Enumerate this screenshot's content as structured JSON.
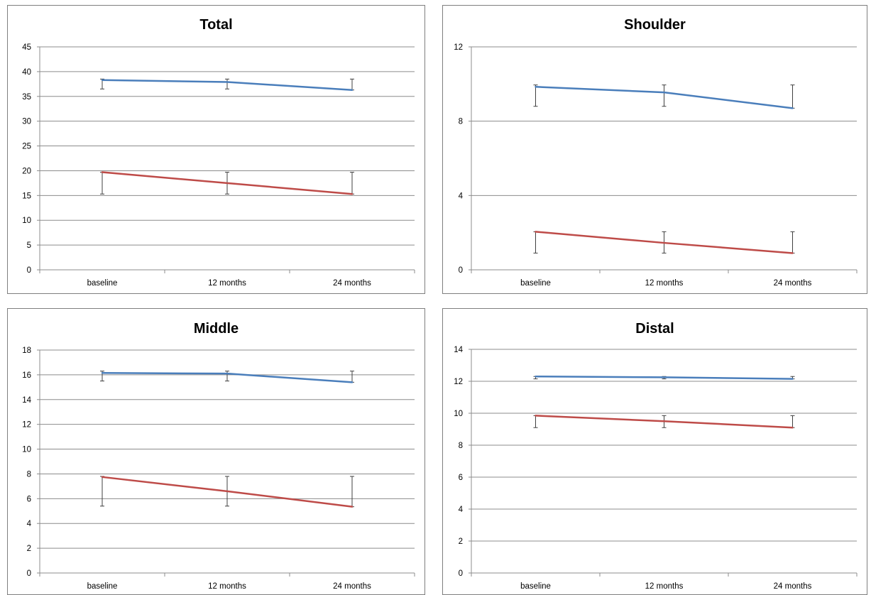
{
  "chart_data": [
    {
      "type": "line",
      "title": "Total",
      "categories": [
        "baseline",
        "12 months",
        "24 months"
      ],
      "ylim": [
        0,
        45
      ],
      "yticks": [
        0,
        5,
        10,
        15,
        20,
        25,
        30,
        35,
        40,
        45
      ],
      "grid": true,
      "series": [
        {
          "color": "#4a7ebb",
          "values": [
            38.3,
            37.9,
            36.3
          ],
          "err_low": [
            36.5,
            36.5,
            36.3
          ],
          "err_high": [
            38.5,
            38.5,
            38.5
          ]
        },
        {
          "color": "#be4b48",
          "values": [
            19.7,
            17.5,
            15.3
          ],
          "err_low": [
            15.3,
            15.3,
            15.3
          ],
          "err_high": [
            19.7,
            19.7,
            19.7
          ]
        }
      ]
    },
    {
      "type": "line",
      "title": "Shoulder",
      "categories": [
        "baseline",
        "12 months",
        "24 months"
      ],
      "ylim": [
        0,
        12
      ],
      "yticks": [
        0,
        4,
        8,
        12
      ],
      "grid": true,
      "series": [
        {
          "color": "#4a7ebb",
          "values": [
            9.85,
            9.55,
            8.7
          ],
          "err_low": [
            8.8,
            8.8,
            8.7
          ],
          "err_high": [
            9.95,
            9.95,
            9.95
          ]
        },
        {
          "color": "#be4b48",
          "values": [
            2.05,
            1.45,
            0.9
          ],
          "err_low": [
            0.9,
            0.9,
            0.9
          ],
          "err_high": [
            2.05,
            2.05,
            2.05
          ]
        }
      ]
    },
    {
      "type": "line",
      "title": "Middle",
      "categories": [
        "baseline",
        "12 months",
        "24 months"
      ],
      "ylim": [
        0,
        18
      ],
      "yticks": [
        0,
        2,
        4,
        6,
        8,
        10,
        12,
        14,
        16,
        18
      ],
      "grid": true,
      "series": [
        {
          "color": "#4a7ebb",
          "values": [
            16.15,
            16.1,
            15.4
          ],
          "err_low": [
            15.5,
            15.5,
            15.4
          ],
          "err_high": [
            16.3,
            16.3,
            16.3
          ]
        },
        {
          "color": "#be4b48",
          "values": [
            7.75,
            6.6,
            5.35
          ],
          "err_low": [
            5.4,
            5.4,
            5.35
          ],
          "err_high": [
            7.8,
            7.8,
            7.8
          ]
        }
      ]
    },
    {
      "type": "line",
      "title": "Distal",
      "categories": [
        "baseline",
        "12 months",
        "24 months"
      ],
      "ylim": [
        0,
        14
      ],
      "yticks": [
        0,
        2,
        4,
        6,
        8,
        10,
        12,
        14
      ],
      "grid": true,
      "series": [
        {
          "color": "#4a7ebb",
          "values": [
            12.3,
            12.25,
            12.15
          ],
          "err_low": [
            12.15,
            12.15,
            12.15
          ],
          "err_high": [
            12.3,
            12.3,
            12.3
          ]
        },
        {
          "color": "#be4b48",
          "values": [
            9.85,
            9.5,
            9.1
          ],
          "err_low": [
            9.1,
            9.1,
            9.1
          ],
          "err_high": [
            9.85,
            9.85,
            9.85
          ]
        }
      ]
    }
  ]
}
